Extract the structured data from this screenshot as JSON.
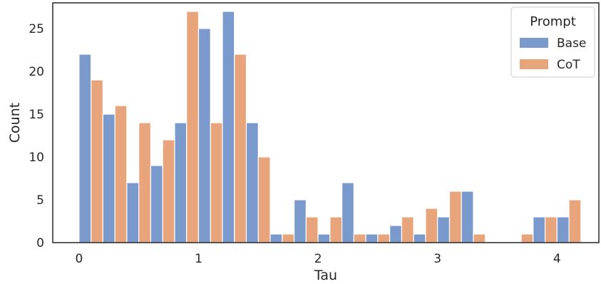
{
  "chart_data": {
    "type": "bar",
    "xlabel": "Tau",
    "ylabel": "Count",
    "xlim": [
      -0.22,
      4.35
    ],
    "ylim": [
      0,
      28
    ],
    "xticks": [
      0,
      1,
      2,
      3,
      4
    ],
    "yticks": [
      0,
      5,
      10,
      15,
      20,
      25
    ],
    "bin_starts": [
      0.0,
      0.2,
      0.4,
      0.6,
      0.8,
      1.0,
      1.2,
      1.4,
      1.6,
      1.8,
      2.0,
      2.2,
      2.4,
      2.6,
      2.8,
      3.0,
      3.2,
      3.4,
      3.6,
      3.8,
      4.0
    ],
    "bin_width": 0.2,
    "legend": {
      "title": "Prompt",
      "position": "top-right"
    },
    "series": [
      {
        "name": "Base",
        "color": "#7a99cc",
        "values": [
          22,
          15,
          7,
          9,
          14,
          25,
          27,
          14,
          1,
          5,
          1,
          7,
          1,
          2,
          1,
          3,
          6,
          0,
          0,
          3,
          3
        ]
      },
      {
        "name": "CoT",
        "color": "#e8a57c",
        "values": [
          19,
          16,
          14,
          12,
          27,
          14,
          22,
          10,
          1,
          3,
          3,
          1,
          1,
          3,
          4,
          6,
          1,
          0,
          1,
          3,
          5
        ]
      }
    ]
  }
}
